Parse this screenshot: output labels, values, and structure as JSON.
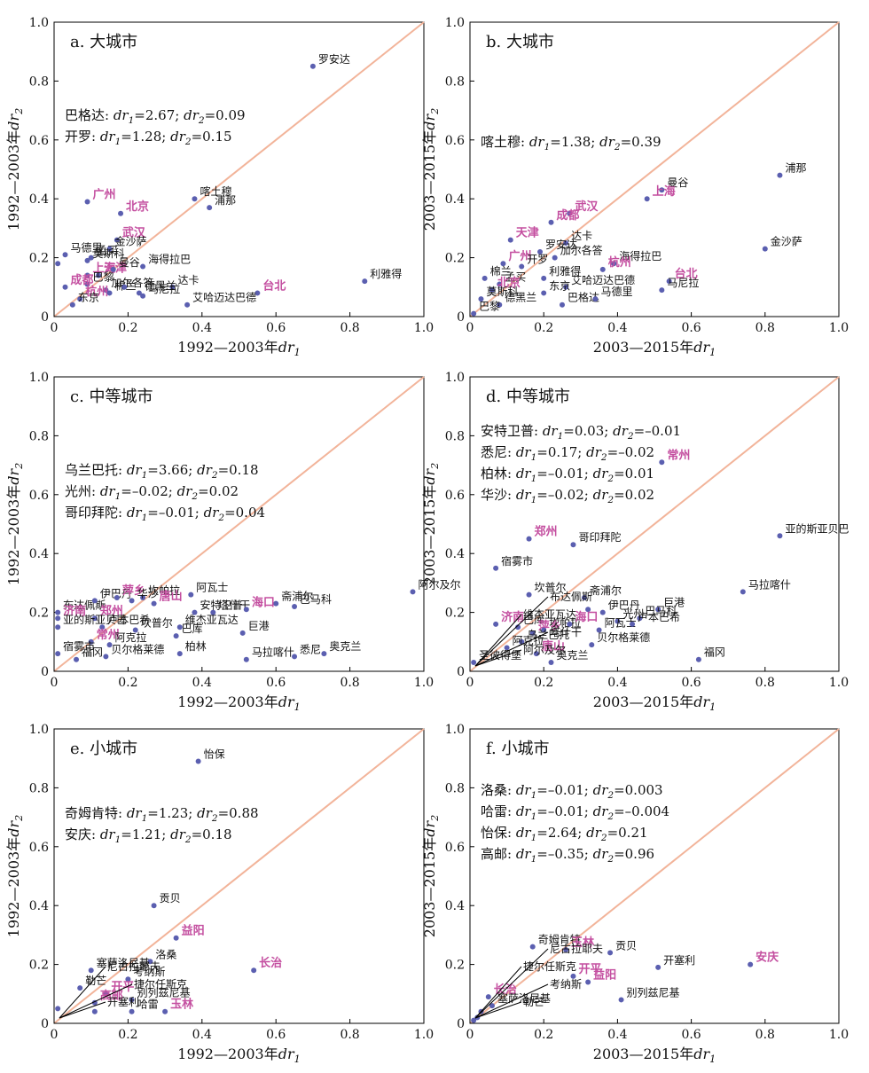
{
  "colors": {
    "point": "#5b5fb0",
    "highlight": "#c44fa0",
    "diagonal": "#f2b49a",
    "axis": "#000000",
    "text": "#111111"
  },
  "chart_data": [
    {
      "type": "scatter",
      "title": "a. 大城市",
      "xlabel": "1992—2003年dr₁",
      "ylabel": "1992—2003年dr₂",
      "xlim": [
        0,
        1
      ],
      "ylim": [
        0,
        1
      ],
      "xticks": [
        "0",
        "0.2",
        "0.4",
        "0.6",
        "0.8",
        "1.0"
      ],
      "yticks": [
        "0",
        "0.2",
        "0.4",
        "0.6",
        "0.8",
        "1.0"
      ],
      "diagonal": true,
      "notes": [
        "巴格达: dr₁=2.67; dr₂=0.09",
        "开罗: dr₁=1.28; dr₂=0.15"
      ],
      "points": [
        {
          "x": 0.7,
          "y": 0.85,
          "label": "罗安达"
        },
        {
          "x": 0.38,
          "y": 0.4,
          "label": "喀土穆"
        },
        {
          "x": 0.42,
          "y": 0.37,
          "label": "浦那"
        },
        {
          "x": 0.09,
          "y": 0.39,
          "label": "广州",
          "hl": true
        },
        {
          "x": 0.18,
          "y": 0.35,
          "label": "北京",
          "hl": true
        },
        {
          "x": 0.1,
          "y": 0.2,
          "label": "孟买"
        },
        {
          "x": 0.17,
          "y": 0.26,
          "label": "武汉",
          "hl": true
        },
        {
          "x": 0.03,
          "y": 0.21,
          "label": "马德里"
        },
        {
          "x": 0.15,
          "y": 0.23,
          "label": "金沙萨"
        },
        {
          "x": 0.09,
          "y": 0.19,
          "label": "莫斯科"
        },
        {
          "x": 0.24,
          "y": 0.17,
          "label": "海得拉巴"
        },
        {
          "x": 0.01,
          "y": 0.18,
          "label": ""
        },
        {
          "x": 0.09,
          "y": 0.14,
          "label": "上海",
          "hl": true
        },
        {
          "x": 0.12,
          "y": 0.14,
          "label": "天津",
          "hl": true
        },
        {
          "x": 0.16,
          "y": 0.16,
          "label": "曼谷"
        },
        {
          "x": 0.09,
          "y": 0.11,
          "label": "巴黎"
        },
        {
          "x": 0.32,
          "y": 0.1,
          "label": "达卡"
        },
        {
          "x": 0.14,
          "y": 0.09,
          "label": "加尔各答"
        },
        {
          "x": 0.03,
          "y": 0.1,
          "label": "成都",
          "hl": true
        },
        {
          "x": 0.07,
          "y": 0.06,
          "label": "杭州",
          "hl": true
        },
        {
          "x": 0.05,
          "y": 0.04,
          "label": "东京"
        },
        {
          "x": 0.15,
          "y": 0.08,
          "label": "棉兰"
        },
        {
          "x": 0.24,
          "y": 0.07,
          "label": "马尼拉"
        },
        {
          "x": 0.19,
          "y": 0.1,
          "label": ""
        },
        {
          "x": 0.23,
          "y": 0.08,
          "label": "德黑兰"
        },
        {
          "x": 0.55,
          "y": 0.08,
          "label": "台北",
          "hl": true
        },
        {
          "x": 0.84,
          "y": 0.12,
          "label": "利雅得"
        },
        {
          "x": 0.36,
          "y": 0.04,
          "label": "艾哈迈达巴德"
        }
      ]
    },
    {
      "type": "scatter",
      "title": "b. 大城市",
      "xlabel": "2003—2015年dr₁",
      "ylabel": "2003—2015年dr₂",
      "xlim": [
        0,
        1
      ],
      "ylim": [
        0,
        1
      ],
      "xticks": [
        "0",
        "0.2",
        "0.4",
        "0.6",
        "0.8",
        "1.0"
      ],
      "yticks": [
        "0",
        "0.2",
        "0.4",
        "0.6",
        "0.8",
        "1.0"
      ],
      "diagonal": true,
      "notes": [
        "喀土穆: dr₁=1.38; dr₂=0.39"
      ],
      "points": [
        {
          "x": 0.84,
          "y": 0.48,
          "label": "浦那"
        },
        {
          "x": 0.52,
          "y": 0.43,
          "label": "曼谷"
        },
        {
          "x": 0.48,
          "y": 0.4,
          "label": "上海",
          "hl": true
        },
        {
          "x": 0.27,
          "y": 0.35,
          "label": "武汉",
          "hl": true
        },
        {
          "x": 0.22,
          "y": 0.32,
          "label": "成都",
          "hl": true
        },
        {
          "x": 0.8,
          "y": 0.23,
          "label": "金沙萨"
        },
        {
          "x": 0.11,
          "y": 0.26,
          "label": "天津",
          "hl": true
        },
        {
          "x": 0.26,
          "y": 0.25,
          "label": "达卡"
        },
        {
          "x": 0.19,
          "y": 0.22,
          "label": "罗安达"
        },
        {
          "x": 0.39,
          "y": 0.18,
          "label": "海得拉巴"
        },
        {
          "x": 0.23,
          "y": 0.2,
          "label": "加尔各答"
        },
        {
          "x": 0.09,
          "y": 0.18,
          "label": "广州",
          "hl": true
        },
        {
          "x": 0.14,
          "y": 0.17,
          "label": "开罗"
        },
        {
          "x": 0.36,
          "y": 0.16,
          "label": "杭州",
          "hl": true
        },
        {
          "x": 0.2,
          "y": 0.13,
          "label": "利雅得"
        },
        {
          "x": 0.54,
          "y": 0.12,
          "label": "台北",
          "hl": true
        },
        {
          "x": 0.04,
          "y": 0.13,
          "label": "棉兰"
        },
        {
          "x": 0.08,
          "y": 0.11,
          "label": "孟买"
        },
        {
          "x": 0.06,
          "y": 0.09,
          "label": "北京",
          "hl": true
        },
        {
          "x": 0.52,
          "y": 0.09,
          "label": "马尼拉"
        },
        {
          "x": 0.26,
          "y": 0.1,
          "label": "艾哈迈达巴德"
        },
        {
          "x": 0.2,
          "y": 0.08,
          "label": "东京"
        },
        {
          "x": 0.03,
          "y": 0.06,
          "label": "莫斯科"
        },
        {
          "x": 0.08,
          "y": 0.04,
          "label": "德黑兰"
        },
        {
          "x": 0.25,
          "y": 0.04,
          "label": "巴格达"
        },
        {
          "x": 0.34,
          "y": 0.06,
          "label": "马德里"
        },
        {
          "x": 0.01,
          "y": 0.01,
          "label": "巴黎"
        }
      ]
    },
    {
      "type": "scatter",
      "title": "c. 中等城市",
      "xlabel": "1992—2003年dr₁",
      "ylabel": "1992—2003年dr₂",
      "xlim": [
        0,
        1
      ],
      "ylim": [
        0,
        1
      ],
      "xticks": [
        "0",
        "0.2",
        "0.4",
        "0.6",
        "0.8",
        "1.0"
      ],
      "yticks": [
        "0",
        "0.2",
        "0.4",
        "0.6",
        "0.8",
        "1.0"
      ],
      "diagonal": true,
      "notes": [
        "乌兰巴托: dr₁=3.66; dr₂=0.18",
        "光州: dr₁=–0.02; dr₂=0.02",
        "哥印拜陀: dr₁=–0.01; dr₂=0.04"
      ],
      "points": [
        {
          "x": 0.01,
          "y": 0.2,
          "label": "布达佩斯"
        },
        {
          "x": 0.11,
          "y": 0.24,
          "label": "伊巴丹"
        },
        {
          "x": 0.17,
          "y": 0.25,
          "label": "萍乡",
          "hl": true
        },
        {
          "x": 0.24,
          "y": 0.25,
          "label": "坎帕拉"
        },
        {
          "x": 0.21,
          "y": 0.24,
          "label": "华沙"
        },
        {
          "x": 0.27,
          "y": 0.23,
          "label": "唐山",
          "hl": true
        },
        {
          "x": 0.37,
          "y": 0.26,
          "label": "阿瓦士"
        },
        {
          "x": 0.43,
          "y": 0.2,
          "label": "塔什干"
        },
        {
          "x": 0.6,
          "y": 0.23,
          "label": "斋浦尔"
        },
        {
          "x": 0.65,
          "y": 0.22,
          "label": "巴马科"
        },
        {
          "x": 0.97,
          "y": 0.27,
          "label": "阿尔及尔"
        },
        {
          "x": 0.52,
          "y": 0.21,
          "label": "海口",
          "hl": true
        },
        {
          "x": 0.01,
          "y": 0.18,
          "label": "济南",
          "hl": true
        },
        {
          "x": 0.11,
          "y": 0.18,
          "label": "郑州",
          "hl": true
        },
        {
          "x": 0.13,
          "y": 0.15,
          "label": "卢本巴希"
        },
        {
          "x": 0.38,
          "y": 0.2,
          "label": "安特卫普"
        },
        {
          "x": 0.22,
          "y": 0.14,
          "label": "坎普尔"
        },
        {
          "x": 0.01,
          "y": 0.15,
          "label": "亚的斯亚贝巴"
        },
        {
          "x": 0.34,
          "y": 0.15,
          "label": "维杰亚瓦达"
        },
        {
          "x": 0.51,
          "y": 0.13,
          "label": "巨港"
        },
        {
          "x": 0.1,
          "y": 0.1,
          "label": "常州",
          "hl": true
        },
        {
          "x": 0.33,
          "y": 0.12,
          "label": "巴库"
        },
        {
          "x": 0.15,
          "y": 0.09,
          "label": "阿克拉"
        },
        {
          "x": 0.01,
          "y": 0.06,
          "label": "宿雾市"
        },
        {
          "x": 0.34,
          "y": 0.06,
          "label": "柏林"
        },
        {
          "x": 0.06,
          "y": 0.04,
          "label": "福冈"
        },
        {
          "x": 0.14,
          "y": 0.05,
          "label": "贝尔格莱德"
        },
        {
          "x": 0.52,
          "y": 0.04,
          "label": "马拉喀什"
        },
        {
          "x": 0.65,
          "y": 0.05,
          "label": "悉尼"
        },
        {
          "x": 0.73,
          "y": 0.06,
          "label": "奥克兰"
        }
      ]
    },
    {
      "type": "scatter",
      "title": "d. 中等城市",
      "xlabel": "2003—2015年dr₁",
      "ylabel": "2003—2015年dr₂",
      "xlim": [
        0,
        1
      ],
      "ylim": [
        0,
        1
      ],
      "xticks": [
        "0",
        "0.2",
        "0.4",
        "0.6",
        "0.8",
        "1.0"
      ],
      "yticks": [
        "0",
        "0.2",
        "0.4",
        "0.6",
        "0.8",
        "1.0"
      ],
      "diagonal": true,
      "notes": [
        "安特卫普: dr₁=0.03; dr₂=–0.01",
        "悉尼: dr₁=0.17; dr₂=–0.02",
        "柏林: dr₁=–0.01; dr₂=0.01",
        "华沙: dr₁=–0.02; dr₂=0.02"
      ],
      "points": [
        {
          "x": 0.52,
          "y": 0.71,
          "label": "常州",
          "hl": true
        },
        {
          "x": 0.16,
          "y": 0.45,
          "label": "郑州",
          "hl": true
        },
        {
          "x": 0.28,
          "y": 0.43,
          "label": "哥印拜陀"
        },
        {
          "x": 0.84,
          "y": 0.46,
          "label": "亚的斯亚贝巴"
        },
        {
          "x": 0.07,
          "y": 0.35,
          "label": "宿雾市"
        },
        {
          "x": 0.74,
          "y": 0.27,
          "label": "马拉喀什"
        },
        {
          "x": 0.16,
          "y": 0.26,
          "label": "坎普尔"
        },
        {
          "x": 0.31,
          "y": 0.25,
          "label": "斋浦尔"
        },
        {
          "x": 0.51,
          "y": 0.21,
          "label": "巨港"
        },
        {
          "x": 0.46,
          "y": 0.18,
          "label": "巴马科"
        },
        {
          "x": 0.36,
          "y": 0.2,
          "label": "伊巴丹"
        },
        {
          "x": 0.4,
          "y": 0.17,
          "label": "光州"
        },
        {
          "x": 0.32,
          "y": 0.21,
          "label": ""
        },
        {
          "x": 0.07,
          "y": 0.16,
          "label": "济南",
          "hl": true
        },
        {
          "x": 0.13,
          "y": 0.15,
          "label": "巴库"
        },
        {
          "x": 0.17,
          "y": 0.13,
          "label": "萍乡",
          "hl": true
        },
        {
          "x": 0.2,
          "y": 0.14,
          "label": "坎帕拉"
        },
        {
          "x": 0.27,
          "y": 0.16,
          "label": "海口",
          "hl": true
        },
        {
          "x": 0.35,
          "y": 0.14,
          "label": "阿瓦士"
        },
        {
          "x": 0.44,
          "y": 0.16,
          "label": "卢本巴希"
        },
        {
          "x": 0.14,
          "y": 0.1,
          "label": "乌兰巴托"
        },
        {
          "x": 0.1,
          "y": 0.08,
          "label": "阿克拉"
        },
        {
          "x": 0.18,
          "y": 0.06,
          "label": "唐山",
          "hl": true
        },
        {
          "x": 0.33,
          "y": 0.09,
          "label": "贝尔格莱德"
        },
        {
          "x": 0.62,
          "y": 0.04,
          "label": "福冈"
        },
        {
          "x": 0.01,
          "y": 0.03,
          "label": "圣彼得堡"
        },
        {
          "x": 0.22,
          "y": 0.03,
          "label": "奥克兰"
        }
      ],
      "extra_labels": [
        "阿尔及尔",
        "塔什干",
        "维杰亚瓦达",
        "布达佩斯"
      ]
    },
    {
      "type": "scatter",
      "title": "e. 小城市",
      "xlabel": "1992—2003年dr₁",
      "ylabel": "1992—2003年dr₂",
      "xlim": [
        0,
        1
      ],
      "ylim": [
        0,
        1
      ],
      "xticks": [
        "0",
        "0.2",
        "0.4",
        "0.6",
        "0.8",
        "1.0"
      ],
      "yticks": [
        "0",
        "0.2",
        "0.4",
        "0.6",
        "0.8",
        "1.0"
      ],
      "diagonal": true,
      "notes": [
        "奇姆肯特: dr₁=1.23; dr₂=0.88",
        "安庆: dr₁=1.21; dr₂=0.18"
      ],
      "points": [
        {
          "x": 0.39,
          "y": 0.89,
          "label": "怡保"
        },
        {
          "x": 0.27,
          "y": 0.4,
          "label": "贡贝"
        },
        {
          "x": 0.33,
          "y": 0.29,
          "label": "益阳",
          "hl": true
        },
        {
          "x": 0.26,
          "y": 0.21,
          "label": "洛桑"
        },
        {
          "x": 0.54,
          "y": 0.18,
          "label": "长治",
          "hl": true
        },
        {
          "x": 0.1,
          "y": 0.18,
          "label": "塞萨洛尼基"
        },
        {
          "x": 0.2,
          "y": 0.15,
          "label": "考纳斯"
        },
        {
          "x": 0.07,
          "y": 0.12,
          "label": "勒芒"
        },
        {
          "x": 0.14,
          "y": 0.1,
          "label": "开平",
          "hl": true
        },
        {
          "x": 0.11,
          "y": 0.07,
          "label": "高邮",
          "hl": true
        },
        {
          "x": 0.21,
          "y": 0.08,
          "label": "别列兹尼基"
        },
        {
          "x": 0.3,
          "y": 0.04,
          "label": "玉林",
          "hl": true
        },
        {
          "x": 0.21,
          "y": 0.04,
          "label": "哈雷"
        },
        {
          "x": 0.01,
          "y": 0.05,
          "label": ""
        },
        {
          "x": 0.11,
          "y": 0.04,
          "label": ""
        }
      ],
      "extra_labels": [
        "开塞利",
        "捷尔任斯克",
        "尼古拉耶夫"
      ]
    },
    {
      "type": "scatter",
      "title": "f. 小城市",
      "xlabel": "2003—2015年dr₁",
      "ylabel": "2003—2015年dr₂",
      "xlim": [
        0,
        1
      ],
      "ylim": [
        0,
        1
      ],
      "xticks": [
        "0",
        "0.2",
        "0.4",
        "0.6",
        "0.8",
        "1.0"
      ],
      "yticks": [
        "0",
        "0.2",
        "0.4",
        "0.6",
        "0.8",
        "1.0"
      ],
      "diagonal": true,
      "notes": [
        "洛桑: dr₁=–0.01; dr₂=0.003",
        "哈雷: dr₁=–0.01; dr₂=–0.004",
        "怡保: dr₁=2.64; dr₂=0.21",
        "高邮: dr₁=–0.35; dr₂=0.96"
      ],
      "points": [
        {
          "x": 0.17,
          "y": 0.26,
          "label": "奇姆肯特"
        },
        {
          "x": 0.26,
          "y": 0.25,
          "label": "玉林",
          "hl": true
        },
        {
          "x": 0.38,
          "y": 0.24,
          "label": "贡贝"
        },
        {
          "x": 0.76,
          "y": 0.2,
          "label": "安庆",
          "hl": true
        },
        {
          "x": 0.51,
          "y": 0.19,
          "label": "开塞利"
        },
        {
          "x": 0.28,
          "y": 0.16,
          "label": "开平",
          "hl": true
        },
        {
          "x": 0.32,
          "y": 0.14,
          "label": "益阳",
          "hl": true
        },
        {
          "x": 0.41,
          "y": 0.08,
          "label": "别列兹尼基"
        },
        {
          "x": 0.05,
          "y": 0.09,
          "label": "长治",
          "hl": true
        },
        {
          "x": 0.06,
          "y": 0.06,
          "label": "塞萨洛尼基"
        },
        {
          "x": 0.02,
          "y": 0.02,
          "label": ""
        },
        {
          "x": 0.01,
          "y": 0.01,
          "label": ""
        },
        {
          "x": 0.03,
          "y": 0.04,
          "label": ""
        }
      ],
      "extra_labels": [
        "勒芒",
        "考纳斯",
        "捷尔任斯克",
        "尼古拉耶夫"
      ]
    }
  ]
}
